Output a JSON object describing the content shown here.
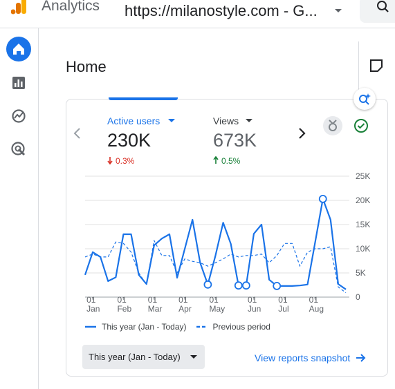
{
  "header": {
    "product": "Analytics",
    "property": "https://milanostyle.com - G..."
  },
  "page_title": "Home",
  "metrics": [
    {
      "label": "Active users",
      "value": "230K",
      "change": "0.3%",
      "direction": "down"
    },
    {
      "label": "Views",
      "value": "673K",
      "change": "0.5%",
      "direction": "up"
    }
  ],
  "chart_data": {
    "type": "line",
    "categories": [
      null,
      "01 Jan",
      null,
      null,
      null,
      "01 Feb",
      null,
      null,
      null,
      "01 Mar",
      null,
      null,
      null,
      "01 Apr",
      null,
      null,
      null,
      "01 May",
      null,
      null,
      null,
      null,
      "01 Jun",
      null,
      null,
      null,
      "01 Jul",
      null,
      null,
      null,
      "01 Aug",
      null,
      null,
      null,
      null
    ],
    "series": [
      {
        "name": "This year (Jan - Today)",
        "color": "#1a73e8",
        "dash": false,
        "values": [
          4600,
          9300,
          8300,
          3300,
          4100,
          13000,
          13000,
          4600,
          2700,
          10700,
          12100,
          13000,
          4000,
          10000,
          16000,
          7100,
          2600,
          8600,
          15400,
          11000,
          2400,
          2400,
          13100,
          15000,
          3600,
          2300,
          2300,
          2300,
          2400,
          2600,
          11400,
          20300,
          16000,
          2700,
          1600
        ],
        "anomalies": [
          16,
          20,
          21,
          25,
          31
        ]
      },
      {
        "name": "Previous period",
        "color": "#1a73e8",
        "dash": true,
        "values": [
          8300,
          8900,
          8300,
          8300,
          11400,
          11100,
          9300,
          5000,
          2600,
          11700,
          8600,
          8600,
          5000,
          7900,
          7400,
          7100,
          6400,
          7100,
          7900,
          8900,
          8300,
          8600,
          8600,
          8900,
          7100,
          8600,
          11100,
          11100,
          6400,
          9300,
          10000,
          10000,
          10400,
          2100,
          900
        ]
      }
    ],
    "ylim": [
      0,
      25000
    ],
    "yticks": [
      0,
      {
        "value": 5000,
        "label": "5K"
      },
      {
        "value": 10000,
        "label": "10K"
      },
      {
        "value": 15000,
        "label": "15K"
      },
      {
        "value": 20000,
        "label": "20K"
      },
      {
        "value": 25000,
        "label": "25K"
      }
    ],
    "grid": true
  },
  "date_range_button": "This year (Jan - Today)",
  "link": "View reports snapshot"
}
